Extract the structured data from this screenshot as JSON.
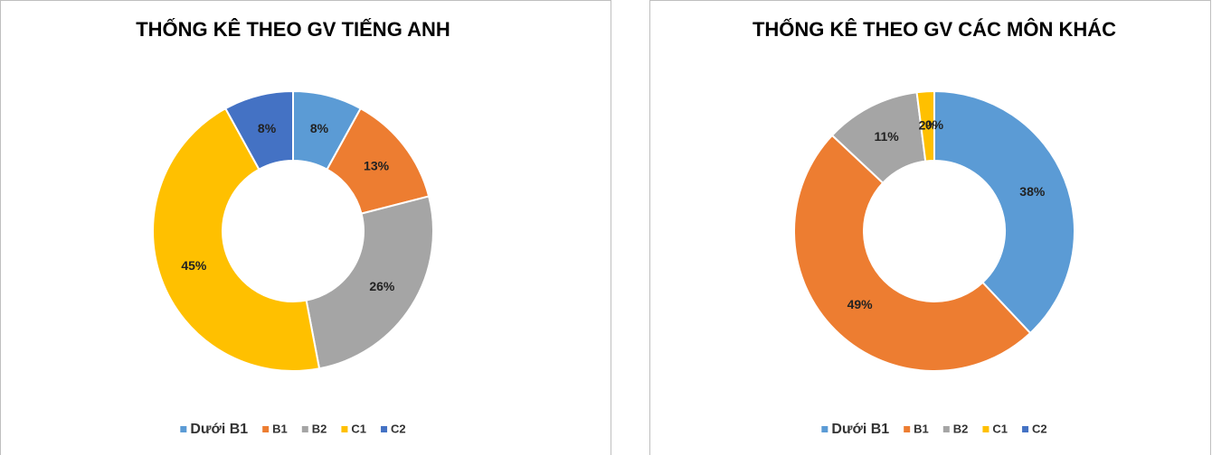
{
  "chart_data": [
    {
      "type": "donut",
      "title": "THỐNG KÊ THEO GV TIẾNG ANH",
      "categories": [
        "Dưới B1",
        "B1",
        "B2",
        "C1",
        "C2"
      ],
      "values": [
        8,
        13,
        26,
        45,
        8
      ],
      "value_labels": [
        "8%",
        "13%",
        "26%",
        "45%",
        "8%"
      ],
      "colors": [
        "#5b9bd5",
        "#ed7d31",
        "#a5a5a5",
        "#ffc000",
        "#4472c4"
      ],
      "legend": "bottom"
    },
    {
      "type": "donut",
      "title": "THỐNG KÊ THEO GV CÁC MÔN KHÁC",
      "categories": [
        "Dưới B1",
        "B1",
        "B2",
        "C1",
        "C2"
      ],
      "values": [
        38,
        49,
        11,
        2,
        0
      ],
      "value_labels": [
        "38%",
        "49%",
        "11%",
        "2%",
        "0%"
      ],
      "colors": [
        "#5b9bd5",
        "#ed7d31",
        "#a5a5a5",
        "#ffc000",
        "#4472c4"
      ],
      "legend": "bottom"
    }
  ]
}
